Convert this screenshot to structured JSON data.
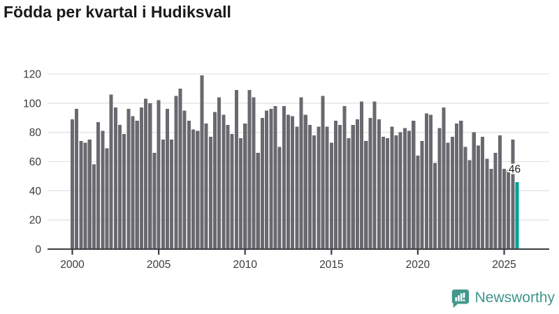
{
  "title": "Födda per kvartal i Hudiksvall",
  "footer": {
    "brand": "Newsworthy"
  },
  "colors": {
    "bar": "#6a696f",
    "highlight": "#00a099",
    "grid": "#e3e3e3",
    "axis": "#3e3d43",
    "tick_label": "#3a3a3f",
    "title": "#191919",
    "annotation": "#222222",
    "logo": "#41998b"
  },
  "chart_data": {
    "type": "bar",
    "title": "Födda per kvartal i Hudiksvall",
    "frequency": "quarterly",
    "x_start": {
      "year": 2000,
      "quarter": 1
    },
    "x_end": {
      "year": 2025,
      "quarter": 4
    },
    "values": [
      89,
      96,
      74,
      73,
      75,
      58,
      87,
      81,
      69,
      106,
      97,
      85,
      79,
      96,
      91,
      88,
      97,
      103,
      100,
      66,
      102,
      75,
      96,
      75,
      105,
      110,
      95,
      88,
      82,
      81,
      119,
      86,
      77,
      94,
      104,
      92,
      85,
      79,
      109,
      76,
      86,
      109,
      104,
      66,
      90,
      95,
      96,
      98,
      70,
      98,
      92,
      91,
      84,
      104,
      92,
      85,
      78,
      84,
      105,
      84,
      73,
      88,
      85,
      98,
      76,
      85,
      89,
      101,
      74,
      90,
      101,
      89,
      77,
      76,
      84,
      78,
      80,
      83,
      81,
      88,
      64,
      74,
      93,
      92,
      59,
      83,
      97,
      73,
      77,
      86,
      88,
      70,
      61,
      80,
      71,
      77,
      62,
      55,
      66,
      78,
      55,
      54,
      75,
      46
    ],
    "highlight_index": 103,
    "annotation_text": "46",
    "x_ticks": [
      "2000",
      "2005",
      "2010",
      "2015",
      "2020",
      "2025"
    ],
    "y_ticks": [
      0,
      20,
      40,
      60,
      80,
      100,
      120
    ],
    "ylim": [
      0,
      120
    ],
    "grid": "horizontal",
    "legend": "none"
  }
}
